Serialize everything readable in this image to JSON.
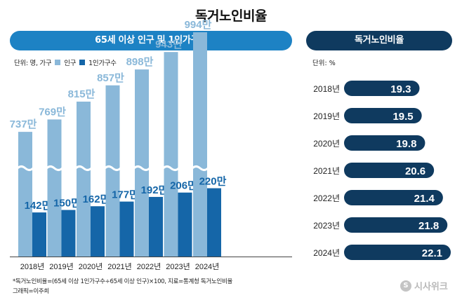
{
  "title": "독거노인비율",
  "left_header": "65세 이상 인구 및 1인가구수",
  "right_header": "독거노인비율",
  "legend": {
    "unit": "단위: 명, 가구",
    "pop_label": "인구",
    "single_label": "1인가구수"
  },
  "right_unit": "단위: %",
  "note": "*독거노인비율=(65세 이상 1인가구수÷65세 이상 인구)×100, 지료=통계청 독거노인비율",
  "credit": "그래픽=이주희",
  "logo": "시사위크",
  "colors": {
    "population": "#8ab8d9",
    "single": "#1566a8",
    "pill": "#0f3a5f",
    "header_left": "#1d82c4"
  },
  "chart_data": [
    {
      "type": "bar",
      "categories": [
        "2018년",
        "2019년",
        "2020년",
        "2021년",
        "2022년",
        "2023년",
        "2024년"
      ],
      "series": [
        {
          "name": "인구",
          "values": [
            737,
            769,
            815,
            857,
            898,
            943,
            994
          ],
          "labels": [
            "737만",
            "769만",
            "815만",
            "857만",
            "898만",
            "943만",
            "994만"
          ]
        },
        {
          "name": "1인가구수",
          "values": [
            142,
            150,
            162,
            177,
            192,
            206,
            220
          ],
          "labels": [
            "142만",
            "150만",
            "162만",
            "177만",
            "192만",
            "206만",
            "220만"
          ]
        }
      ],
      "axis_break": true
    },
    {
      "type": "bar",
      "orientation": "horizontal",
      "categories": [
        "2018년",
        "2019년",
        "2020년",
        "2021년",
        "2022년",
        "2023년",
        "2024년"
      ],
      "values": [
        19.3,
        19.5,
        19.8,
        20.6,
        21.4,
        21.8,
        22.1
      ],
      "value_labels": [
        "19.3",
        "19.5",
        "19.8",
        "20.6",
        "21.4",
        "21.8",
        "22.1"
      ]
    }
  ]
}
